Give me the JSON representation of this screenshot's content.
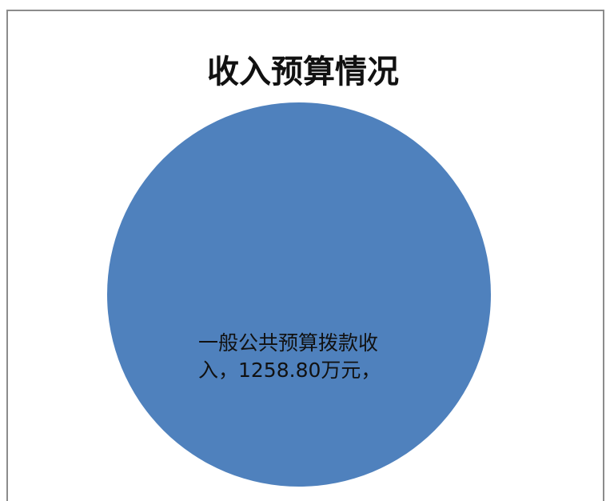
{
  "chart_data": {
    "type": "pie",
    "title": "收入预算情况",
    "slices": [
      {
        "label": "一般公共预算拨款收入",
        "value": 1258.8,
        "color": "#4f81bd"
      }
    ],
    "data_label_lines": [
      "一般公共预算拨款收",
      "入，1258.80万元，"
    ]
  }
}
